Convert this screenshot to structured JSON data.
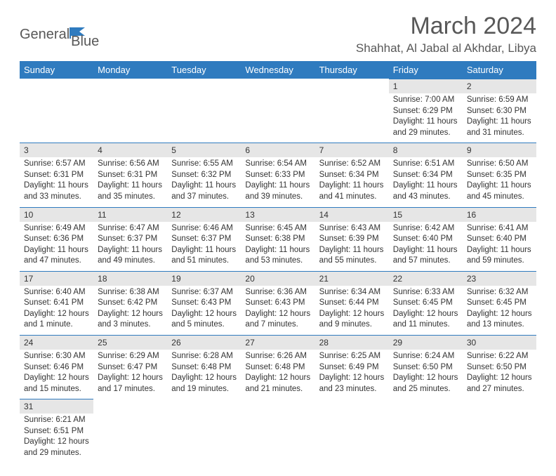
{
  "brand": {
    "name1": "General",
    "name2": "Blue"
  },
  "title": "March 2024",
  "location": "Shahhat, Al Jabal al Akhdar, Libya",
  "colors": {
    "header_bg": "#2f7bbf",
    "header_fg": "#ffffff",
    "band_bg": "#e6e6e6",
    "rule": "#2f7bbf",
    "text": "#333333",
    "title": "#585858"
  },
  "daysOfWeek": [
    "Sunday",
    "Monday",
    "Tuesday",
    "Wednesday",
    "Thursday",
    "Friday",
    "Saturday"
  ],
  "grid": {
    "first_day_index": 5,
    "days_in_month": 31
  },
  "days": {
    "1": {
      "sunrise": "7:00 AM",
      "sunset": "6:29 PM",
      "daylight": "11 hours and 29 minutes."
    },
    "2": {
      "sunrise": "6:59 AM",
      "sunset": "6:30 PM",
      "daylight": "11 hours and 31 minutes."
    },
    "3": {
      "sunrise": "6:57 AM",
      "sunset": "6:31 PM",
      "daylight": "11 hours and 33 minutes."
    },
    "4": {
      "sunrise": "6:56 AM",
      "sunset": "6:31 PM",
      "daylight": "11 hours and 35 minutes."
    },
    "5": {
      "sunrise": "6:55 AM",
      "sunset": "6:32 PM",
      "daylight": "11 hours and 37 minutes."
    },
    "6": {
      "sunrise": "6:54 AM",
      "sunset": "6:33 PM",
      "daylight": "11 hours and 39 minutes."
    },
    "7": {
      "sunrise": "6:52 AM",
      "sunset": "6:34 PM",
      "daylight": "11 hours and 41 minutes."
    },
    "8": {
      "sunrise": "6:51 AM",
      "sunset": "6:34 PM",
      "daylight": "11 hours and 43 minutes."
    },
    "9": {
      "sunrise": "6:50 AM",
      "sunset": "6:35 PM",
      "daylight": "11 hours and 45 minutes."
    },
    "10": {
      "sunrise": "6:49 AM",
      "sunset": "6:36 PM",
      "daylight": "11 hours and 47 minutes."
    },
    "11": {
      "sunrise": "6:47 AM",
      "sunset": "6:37 PM",
      "daylight": "11 hours and 49 minutes."
    },
    "12": {
      "sunrise": "6:46 AM",
      "sunset": "6:37 PM",
      "daylight": "11 hours and 51 minutes."
    },
    "13": {
      "sunrise": "6:45 AM",
      "sunset": "6:38 PM",
      "daylight": "11 hours and 53 minutes."
    },
    "14": {
      "sunrise": "6:43 AM",
      "sunset": "6:39 PM",
      "daylight": "11 hours and 55 minutes."
    },
    "15": {
      "sunrise": "6:42 AM",
      "sunset": "6:40 PM",
      "daylight": "11 hours and 57 minutes."
    },
    "16": {
      "sunrise": "6:41 AM",
      "sunset": "6:40 PM",
      "daylight": "11 hours and 59 minutes."
    },
    "17": {
      "sunrise": "6:40 AM",
      "sunset": "6:41 PM",
      "daylight": "12 hours and 1 minute."
    },
    "18": {
      "sunrise": "6:38 AM",
      "sunset": "6:42 PM",
      "daylight": "12 hours and 3 minutes."
    },
    "19": {
      "sunrise": "6:37 AM",
      "sunset": "6:43 PM",
      "daylight": "12 hours and 5 minutes."
    },
    "20": {
      "sunrise": "6:36 AM",
      "sunset": "6:43 PM",
      "daylight": "12 hours and 7 minutes."
    },
    "21": {
      "sunrise": "6:34 AM",
      "sunset": "6:44 PM",
      "daylight": "12 hours and 9 minutes."
    },
    "22": {
      "sunrise": "6:33 AM",
      "sunset": "6:45 PM",
      "daylight": "12 hours and 11 minutes."
    },
    "23": {
      "sunrise": "6:32 AM",
      "sunset": "6:45 PM",
      "daylight": "12 hours and 13 minutes."
    },
    "24": {
      "sunrise": "6:30 AM",
      "sunset": "6:46 PM",
      "daylight": "12 hours and 15 minutes."
    },
    "25": {
      "sunrise": "6:29 AM",
      "sunset": "6:47 PM",
      "daylight": "12 hours and 17 minutes."
    },
    "26": {
      "sunrise": "6:28 AM",
      "sunset": "6:48 PM",
      "daylight": "12 hours and 19 minutes."
    },
    "27": {
      "sunrise": "6:26 AM",
      "sunset": "6:48 PM",
      "daylight": "12 hours and 21 minutes."
    },
    "28": {
      "sunrise": "6:25 AM",
      "sunset": "6:49 PM",
      "daylight": "12 hours and 23 minutes."
    },
    "29": {
      "sunrise": "6:24 AM",
      "sunset": "6:50 PM",
      "daylight": "12 hours and 25 minutes."
    },
    "30": {
      "sunrise": "6:22 AM",
      "sunset": "6:50 PM",
      "daylight": "12 hours and 27 minutes."
    },
    "31": {
      "sunrise": "6:21 AM",
      "sunset": "6:51 PM",
      "daylight": "12 hours and 29 minutes."
    }
  },
  "labels": {
    "sunrise": "Sunrise:",
    "sunset": "Sunset:",
    "daylight": "Daylight:"
  }
}
